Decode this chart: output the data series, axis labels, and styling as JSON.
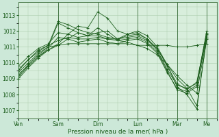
{
  "bg_color": "#cce8d8",
  "plot_bg_color": "#d8eedc",
  "grid_color": "#aaccaa",
  "line_color": "#1a5c1a",
  "xlabel": "Pression niveau de la mer( hPa )",
  "ylim": [
    1006.5,
    1013.8
  ],
  "yticks": [
    1007,
    1008,
    1009,
    1010,
    1011,
    1012,
    1013
  ],
  "xtick_labels": [
    "Ven",
    "Sam",
    "Dim",
    "Lun",
    "Mar",
    "Me"
  ],
  "xtick_positions": [
    0,
    24,
    48,
    72,
    96,
    114
  ],
  "xlim": [
    0,
    120
  ],
  "series": [
    [
      0,
      1009.3,
      6,
      1009.8,
      12,
      1010.4,
      18,
      1010.8,
      24,
      1011.1,
      30,
      1011.2,
      36,
      1011.2,
      42,
      1011.2,
      48,
      1011.2,
      54,
      1011.2,
      60,
      1011.2,
      66,
      1011.2,
      72,
      1011.1,
      78,
      1011.1,
      84,
      1011.1,
      90,
      1011.1,
      96,
      1011.0,
      102,
      1011.0,
      108,
      1011.1,
      114,
      1011.2
    ],
    [
      0,
      1009.5,
      6,
      1010.2,
      12,
      1010.8,
      18,
      1011.1,
      24,
      1011.4,
      30,
      1011.6,
      36,
      1011.5,
      42,
      1011.5,
      48,
      1011.6,
      54,
      1011.5,
      60,
      1011.4,
      66,
      1011.3,
      72,
      1011.1,
      78,
      1010.9,
      84,
      1010.5,
      90,
      1009.9,
      96,
      1009.2,
      102,
      1008.6,
      108,
      1008.1,
      114,
      1011.6
    ],
    [
      0,
      1009.2,
      6,
      1009.9,
      12,
      1010.5,
      18,
      1011.0,
      24,
      1011.1,
      30,
      1011.5,
      36,
      1011.9,
      42,
      1011.7,
      48,
      1011.9,
      54,
      1012.0,
      60,
      1011.5,
      66,
      1011.6,
      72,
      1011.7,
      78,
      1011.4,
      84,
      1010.9,
      90,
      1009.9,
      96,
      1009.0,
      102,
      1008.4,
      108,
      1007.3,
      114,
      1011.5
    ],
    [
      0,
      1009.0,
      6,
      1009.7,
      12,
      1010.3,
      18,
      1010.8,
      24,
      1011.2,
      30,
      1011.8,
      36,
      1012.3,
      42,
      1012.2,
      48,
      1013.2,
      54,
      1012.8,
      60,
      1012.0,
      66,
      1011.8,
      72,
      1012.0,
      78,
      1011.7,
      84,
      1011.0,
      90,
      1009.9,
      96,
      1008.5,
      102,
      1008.0,
      108,
      1007.1,
      114,
      1011.6
    ],
    [
      0,
      1009.4,
      6,
      1010.0,
      12,
      1010.6,
      18,
      1011.0,
      24,
      1012.5,
      30,
      1012.2,
      36,
      1011.9,
      42,
      1011.7,
      48,
      1012.2,
      54,
      1011.8,
      60,
      1011.4,
      66,
      1011.5,
      72,
      1011.6,
      78,
      1011.3,
      84,
      1010.7,
      90,
      1009.5,
      96,
      1008.3,
      102,
      1008.1,
      108,
      1008.5,
      114,
      1011.8
    ],
    [
      0,
      1009.6,
      6,
      1010.2,
      12,
      1010.7,
      18,
      1011.1,
      24,
      1012.6,
      30,
      1012.4,
      36,
      1012.1,
      42,
      1011.9,
      48,
      1011.8,
      54,
      1011.6,
      60,
      1011.5,
      66,
      1011.8,
      72,
      1011.9,
      78,
      1011.5,
      84,
      1010.9,
      90,
      1009.8,
      96,
      1008.7,
      102,
      1008.3,
      108,
      1008.8,
      114,
      1011.9
    ],
    [
      0,
      1009.8,
      6,
      1010.4,
      12,
      1010.9,
      18,
      1011.2,
      24,
      1011.9,
      30,
      1011.8,
      36,
      1011.6,
      42,
      1011.7,
      48,
      1011.7,
      54,
      1011.5,
      60,
      1011.5,
      66,
      1011.7,
      72,
      1011.8,
      78,
      1011.5,
      84,
      1010.8,
      90,
      1009.6,
      96,
      1008.6,
      102,
      1008.4,
      108,
      1008.7,
      114,
      1012.0
    ],
    [
      0,
      1009.1,
      6,
      1009.8,
      12,
      1010.4,
      18,
      1010.9,
      24,
      1011.6,
      30,
      1011.5,
      36,
      1011.3,
      42,
      1011.4,
      48,
      1011.5,
      54,
      1011.3,
      60,
      1011.2,
      66,
      1011.4,
      72,
      1011.5,
      78,
      1011.2,
      84,
      1010.6,
      90,
      1009.4,
      96,
      1008.4,
      102,
      1008.2,
      108,
      1008.6,
      114,
      1011.7
    ]
  ]
}
